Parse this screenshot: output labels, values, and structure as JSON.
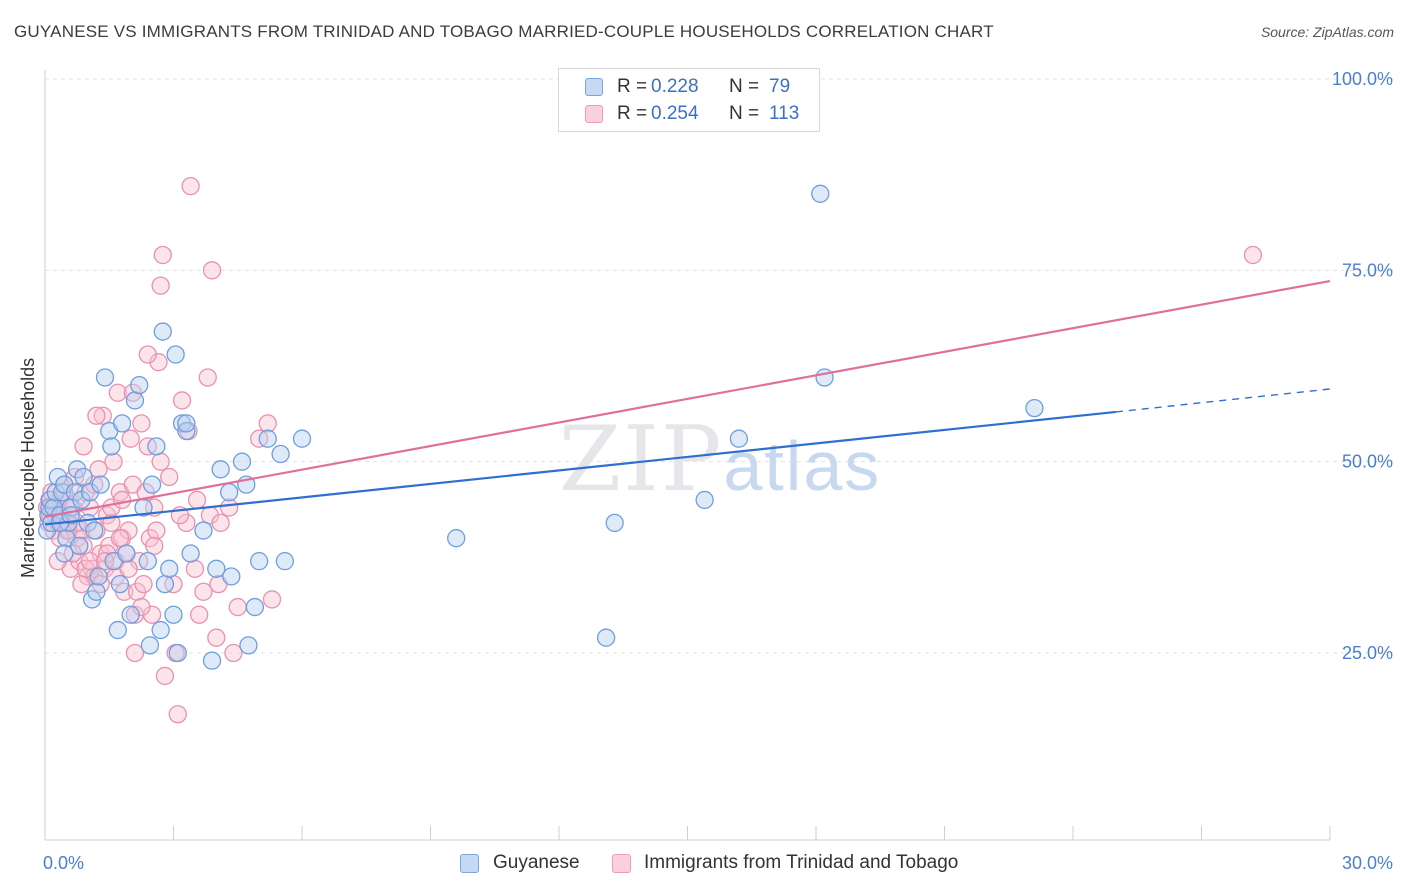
{
  "title": "GUYANESE VS IMMIGRANTS FROM TRINIDAD AND TOBAGO MARRIED-COUPLE HOUSEHOLDS CORRELATION CHART",
  "source": "Source: ZipAtlas.com",
  "legend": {
    "rows": [
      {
        "r_label": "R =",
        "r_value": "0.228",
        "n_label": "N =",
        "n_value": "79"
      },
      {
        "r_label": "R =",
        "r_value": "0.254",
        "n_label": "N =",
        "n_value": "113"
      }
    ]
  },
  "colors": {
    "blue_fill": "#b8d0f0",
    "blue_stroke": "#6f9ede",
    "blue_line": "#2e6fd0",
    "pink_fill": "#f8c3d3",
    "pink_stroke": "#e891b0",
    "pink_line": "#e0709a",
    "tick_text": "#4a7fcf"
  },
  "chart_data": {
    "type": "scatter",
    "title": "GUYANESE VS IMMIGRANTS FROM TRINIDAD AND TOBAGO MARRIED-COUPLE HOUSEHOLDS CORRELATION CHART",
    "xlabel": "",
    "ylabel": "Married-couple Households",
    "xlim": [
      0,
      30
    ],
    "ylim": [
      0,
      105
    ],
    "x_tick_labels": [
      "0.0%",
      "30.0%"
    ],
    "y_ticks": [
      25,
      50,
      75,
      100
    ],
    "y_tick_labels": [
      "25.0%",
      "50.0%",
      "75.0%",
      "100.0%"
    ],
    "grid": true,
    "legend_position": "top-center",
    "watermark": "ZIPatlas",
    "series": [
      {
        "name": "Guyanese",
        "color": "blue",
        "trend": {
          "x0": 0,
          "y0": 41.8,
          "x1": 25,
          "y1": 56.5,
          "dash_to_x": 30,
          "dash_to_y": 59.5
        },
        "points": [
          [
            0.05,
            41
          ],
          [
            0.08,
            43
          ],
          [
            0.1,
            44
          ],
          [
            0.12,
            45
          ],
          [
            0.15,
            42
          ],
          [
            0.2,
            44
          ],
          [
            0.25,
            46
          ],
          [
            0.3,
            48
          ],
          [
            0.35,
            43
          ],
          [
            0.4,
            46
          ],
          [
            0.45,
            47
          ],
          [
            0.5,
            40
          ],
          [
            0.55,
            42
          ],
          [
            0.6,
            44
          ],
          [
            0.7,
            46
          ],
          [
            0.75,
            49
          ],
          [
            0.8,
            39
          ],
          [
            0.85,
            45
          ],
          [
            0.9,
            48
          ],
          [
            1.0,
            42
          ],
          [
            1.05,
            46
          ],
          [
            1.1,
            32
          ],
          [
            1.15,
            41
          ],
          [
            1.2,
            33
          ],
          [
            1.3,
            47
          ],
          [
            1.4,
            61
          ],
          [
            1.5,
            54
          ],
          [
            1.55,
            52
          ],
          [
            1.6,
            37
          ],
          [
            1.7,
            28
          ],
          [
            1.75,
            34
          ],
          [
            1.8,
            55
          ],
          [
            1.9,
            38
          ],
          [
            2.0,
            30
          ],
          [
            2.1,
            58
          ],
          [
            2.2,
            60
          ],
          [
            2.3,
            44
          ],
          [
            2.4,
            37
          ],
          [
            2.5,
            47
          ],
          [
            2.6,
            52
          ],
          [
            2.7,
            28
          ],
          [
            2.75,
            67
          ],
          [
            2.8,
            34
          ],
          [
            2.9,
            36
          ],
          [
            3.0,
            30
          ],
          [
            3.05,
            64
          ],
          [
            3.1,
            25
          ],
          [
            3.2,
            55
          ],
          [
            3.3,
            54
          ],
          [
            3.4,
            38
          ],
          [
            3.7,
            41
          ],
          [
            3.9,
            24
          ],
          [
            4.0,
            36
          ],
          [
            4.1,
            49
          ],
          [
            4.3,
            46
          ],
          [
            4.35,
            35
          ],
          [
            4.6,
            50
          ],
          [
            4.7,
            47
          ],
          [
            4.75,
            26
          ],
          [
            4.9,
            31
          ],
          [
            5.0,
            37
          ],
          [
            5.2,
            53
          ],
          [
            5.5,
            51
          ],
          [
            5.6,
            37
          ],
          [
            6.0,
            53
          ],
          [
            9.6,
            40
          ],
          [
            13.1,
            27
          ],
          [
            13.3,
            42
          ],
          [
            15.4,
            45
          ],
          [
            16.2,
            53
          ],
          [
            18.1,
            85
          ],
          [
            18.2,
            61
          ],
          [
            23.1,
            57
          ],
          [
            0.35,
            42
          ],
          [
            0.6,
            43
          ],
          [
            1.25,
            35
          ],
          [
            2.45,
            26
          ],
          [
            0.45,
            38
          ],
          [
            3.3,
            55
          ]
        ]
      },
      {
        "name": "Immigrants from Trinidad and Tobago",
        "color": "pink",
        "trend": {
          "x0": 0,
          "y0": 42.8,
          "x1": 30,
          "y1": 73.6
        },
        "points": [
          [
            0.05,
            44
          ],
          [
            0.08,
            42
          ],
          [
            0.1,
            45
          ],
          [
            0.12,
            43
          ],
          [
            0.15,
            46
          ],
          [
            0.2,
            41
          ],
          [
            0.25,
            44
          ],
          [
            0.3,
            42
          ],
          [
            0.35,
            45
          ],
          [
            0.4,
            43
          ],
          [
            0.45,
            47
          ],
          [
            0.5,
            42
          ],
          [
            0.55,
            45
          ],
          [
            0.6,
            36
          ],
          [
            0.65,
            44
          ],
          [
            0.7,
            48
          ],
          [
            0.75,
            40
          ],
          [
            0.8,
            37
          ],
          [
            0.85,
            41
          ],
          [
            0.9,
            52
          ],
          [
            0.95,
            46
          ],
          [
            1.0,
            35
          ],
          [
            1.05,
            44
          ],
          [
            1.1,
            36
          ],
          [
            1.15,
            47
          ],
          [
            1.2,
            41
          ],
          [
            1.25,
            49
          ],
          [
            1.3,
            38
          ],
          [
            1.35,
            56
          ],
          [
            1.4,
            36
          ],
          [
            1.45,
            43
          ],
          [
            1.5,
            39
          ],
          [
            1.55,
            42
          ],
          [
            1.6,
            50
          ],
          [
            1.65,
            37
          ],
          [
            1.7,
            59
          ],
          [
            1.75,
            46
          ],
          [
            1.8,
            40
          ],
          [
            1.85,
            33
          ],
          [
            1.9,
            38
          ],
          [
            1.95,
            41
          ],
          [
            2.0,
            53
          ],
          [
            2.05,
            47
          ],
          [
            2.1,
            30
          ],
          [
            2.15,
            33
          ],
          [
            2.2,
            37
          ],
          [
            2.25,
            55
          ],
          [
            2.3,
            34
          ],
          [
            2.35,
            46
          ],
          [
            2.4,
            52
          ],
          [
            2.45,
            40
          ],
          [
            2.5,
            30
          ],
          [
            2.55,
            44
          ],
          [
            2.6,
            41
          ],
          [
            2.65,
            63
          ],
          [
            2.7,
            73
          ],
          [
            2.75,
            77
          ],
          [
            2.8,
            22
          ],
          [
            2.9,
            48
          ],
          [
            3.0,
            34
          ],
          [
            3.05,
            25
          ],
          [
            3.1,
            17
          ],
          [
            3.2,
            58
          ],
          [
            3.3,
            42
          ],
          [
            3.35,
            54
          ],
          [
            3.4,
            86
          ],
          [
            3.5,
            36
          ],
          [
            3.55,
            45
          ],
          [
            3.6,
            30
          ],
          [
            3.7,
            33
          ],
          [
            3.8,
            61
          ],
          [
            3.85,
            43
          ],
          [
            3.9,
            75
          ],
          [
            4.0,
            27
          ],
          [
            4.05,
            34
          ],
          [
            4.1,
            42
          ],
          [
            4.3,
            44
          ],
          [
            4.4,
            25
          ],
          [
            4.5,
            31
          ],
          [
            5.0,
            53
          ],
          [
            5.2,
            55
          ],
          [
            5.3,
            32
          ],
          [
            0.3,
            37
          ],
          [
            0.5,
            41
          ],
          [
            0.9,
            39
          ],
          [
            1.15,
            35
          ],
          [
            1.45,
            38
          ],
          [
            1.75,
            40
          ],
          [
            2.05,
            59
          ],
          [
            2.4,
            64
          ],
          [
            28.2,
            77
          ],
          [
            0.15,
            44
          ],
          [
            0.25,
            43
          ],
          [
            0.35,
            40
          ],
          [
            0.45,
            46
          ],
          [
            0.55,
            41
          ],
          [
            0.65,
            38
          ],
          [
            0.75,
            42
          ],
          [
            0.85,
            34
          ],
          [
            0.95,
            36
          ],
          [
            1.05,
            37
          ],
          [
            1.2,
            56
          ],
          [
            1.3,
            34
          ],
          [
            1.4,
            37
          ],
          [
            1.55,
            44
          ],
          [
            1.65,
            35
          ],
          [
            1.8,
            45
          ],
          [
            1.95,
            36
          ],
          [
            2.1,
            25
          ],
          [
            2.25,
            31
          ],
          [
            2.55,
            39
          ],
          [
            2.7,
            50
          ],
          [
            3.15,
            43
          ]
        ]
      }
    ]
  },
  "bottom_legend": [
    "Guyanese",
    "Immigrants from Trinidad and Tobago"
  ]
}
